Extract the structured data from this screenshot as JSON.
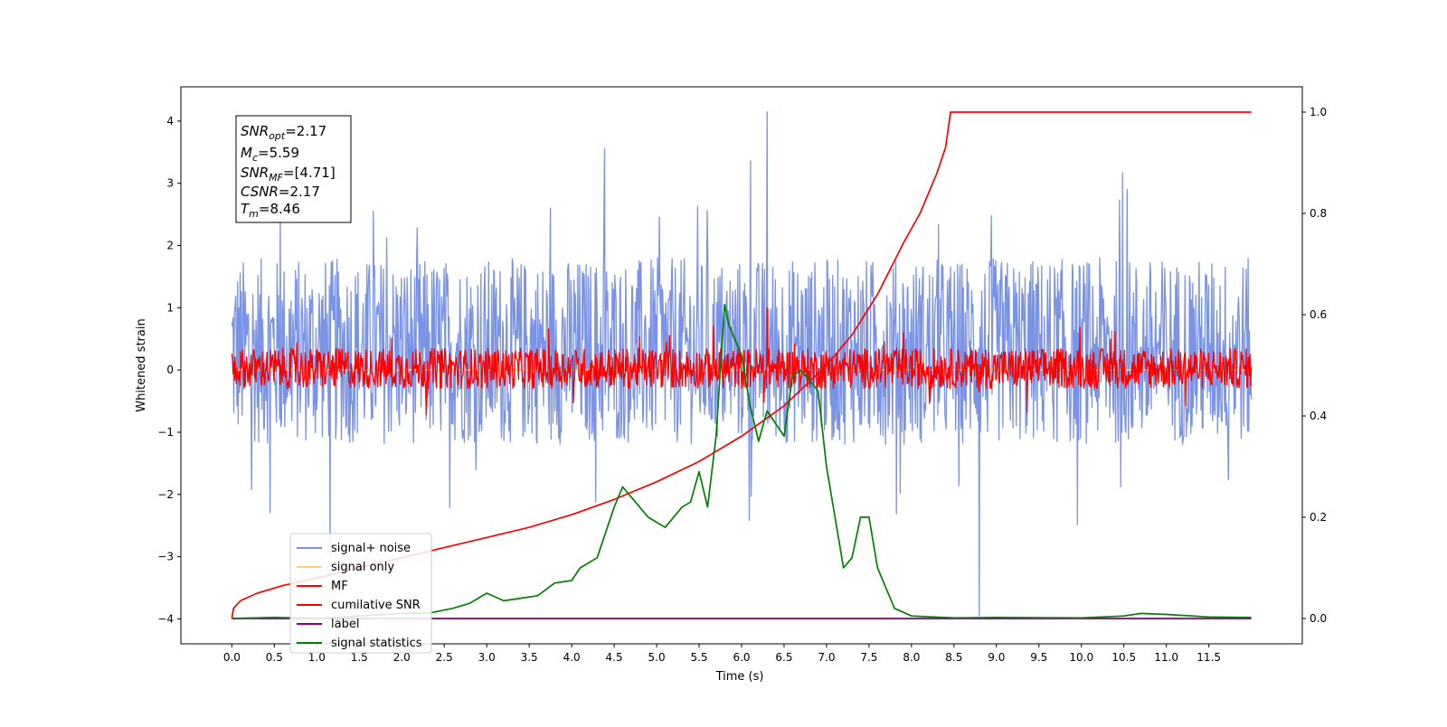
{
  "chart_data": {
    "type": "line",
    "xlabel": "Time (s)",
    "ylabel": "Whitened strain",
    "xlim": [
      -0.6,
      12.6
    ],
    "ylim": [
      -4.4,
      4.55
    ],
    "ylim_right": [
      -0.05,
      1.05
    ],
    "x_ticks": [
      "0.0",
      "0.5",
      "1.0",
      "1.5",
      "2.0",
      "2.5",
      "3.0",
      "3.5",
      "4.0",
      "4.5",
      "5.0",
      "5.5",
      "6.0",
      "6.5",
      "7.0",
      "7.5",
      "8.0",
      "8.5",
      "9.0",
      "9.5",
      "10.0",
      "10.5",
      "11.0",
      "11.5"
    ],
    "y_ticks_left": [
      "−4",
      "−3",
      "−2",
      "−1",
      "0",
      "1",
      "2",
      "3",
      "4"
    ],
    "y_ticks_right": [
      "0.0",
      "0.2",
      "0.4",
      "0.6",
      "0.8",
      "1.0"
    ],
    "annotation": {
      "snr_opt": "=2.17",
      "mc": "=5.59",
      "snr_mf": "=[4.71]",
      "csnr": "=2.17",
      "tm": "=8.46"
    },
    "legend": {
      "location": "lower-left",
      "entries": [
        {
          "label": "signal+ noise",
          "color": "#7b93e6"
        },
        {
          "label": "signal only",
          "color": "#ffcc80"
        },
        {
          "label": "MF",
          "color": "#ff0000"
        },
        {
          "label": "cumilative SNR",
          "color": "#ff0000"
        },
        {
          "label": "label",
          "color": "#800080"
        },
        {
          "label": "signal statistics",
          "color": "#008000"
        }
      ]
    },
    "series": [
      {
        "name": "signal+ noise",
        "axis": "left",
        "color": "#7b93e6",
        "kind": "noise",
        "x_range": [
          0,
          12
        ],
        "center": 0.3,
        "band": [
          -1.2,
          1.8
        ],
        "peaks": [
          4.15,
          -3.95
        ]
      },
      {
        "name": "signal only",
        "axis": "left",
        "color": "#ffcc80",
        "kind": "flat",
        "x_range": [
          0,
          12
        ],
        "value": 0
      },
      {
        "name": "MF",
        "axis": "left",
        "color": "#ff0000",
        "kind": "noise",
        "x_range": [
          0,
          12
        ],
        "center": 0.0,
        "band": [
          -0.3,
          0.35
        ],
        "peaks": [
          1.0,
          -0.35
        ]
      },
      {
        "name": "cumilative SNR",
        "axis": "right",
        "color": "#ff0000",
        "kind": "line",
        "x": [
          0.0,
          0.02,
          0.1,
          0.3,
          0.6,
          1.0,
          1.5,
          2.0,
          2.5,
          3.0,
          3.5,
          4.0,
          4.5,
          5.0,
          5.5,
          6.0,
          6.5,
          7.0,
          7.3,
          7.6,
          7.9,
          8.1,
          8.3,
          8.4,
          8.46,
          12.0
        ],
        "y": [
          0.0,
          0.02,
          0.035,
          0.05,
          0.065,
          0.08,
          0.1,
          0.12,
          0.14,
          0.16,
          0.18,
          0.205,
          0.235,
          0.27,
          0.31,
          0.36,
          0.42,
          0.5,
          0.56,
          0.64,
          0.74,
          0.8,
          0.88,
          0.93,
          1.0,
          1.0
        ]
      },
      {
        "name": "label",
        "axis": "right",
        "color": "#800080",
        "kind": "line",
        "x": [
          0.0,
          12.0
        ],
        "y": [
          0.0,
          0.0
        ]
      },
      {
        "name": "signal statistics",
        "axis": "right",
        "color": "#008000",
        "kind": "line",
        "x": [
          0.0,
          0.5,
          1.0,
          1.5,
          2.0,
          2.3,
          2.6,
          2.8,
          3.0,
          3.2,
          3.4,
          3.6,
          3.8,
          4.0,
          4.1,
          4.3,
          4.5,
          4.6,
          4.7,
          4.8,
          4.9,
          5.1,
          5.3,
          5.4,
          5.5,
          5.6,
          5.7,
          5.8,
          5.85,
          6.0,
          6.1,
          6.2,
          6.3,
          6.5,
          6.6,
          6.7,
          6.9,
          7.0,
          7.1,
          7.2,
          7.3,
          7.4,
          7.5,
          7.6,
          7.8,
          8.0,
          8.5,
          9.0,
          10.0,
          10.5,
          10.7,
          11.0,
          11.5,
          12.0
        ],
        "y": [
          0.0,
          0.002,
          0.0,
          0.005,
          0.01,
          0.01,
          0.02,
          0.03,
          0.05,
          0.035,
          0.04,
          0.045,
          0.07,
          0.075,
          0.1,
          0.12,
          0.22,
          0.26,
          0.24,
          0.22,
          0.2,
          0.18,
          0.22,
          0.23,
          0.29,
          0.22,
          0.36,
          0.62,
          0.58,
          0.52,
          0.42,
          0.35,
          0.41,
          0.36,
          0.48,
          0.49,
          0.45,
          0.3,
          0.2,
          0.1,
          0.12,
          0.2,
          0.2,
          0.1,
          0.02,
          0.005,
          0.001,
          0.002,
          0.001,
          0.005,
          0.01,
          0.008,
          0.003,
          0.002
        ]
      }
    ]
  }
}
